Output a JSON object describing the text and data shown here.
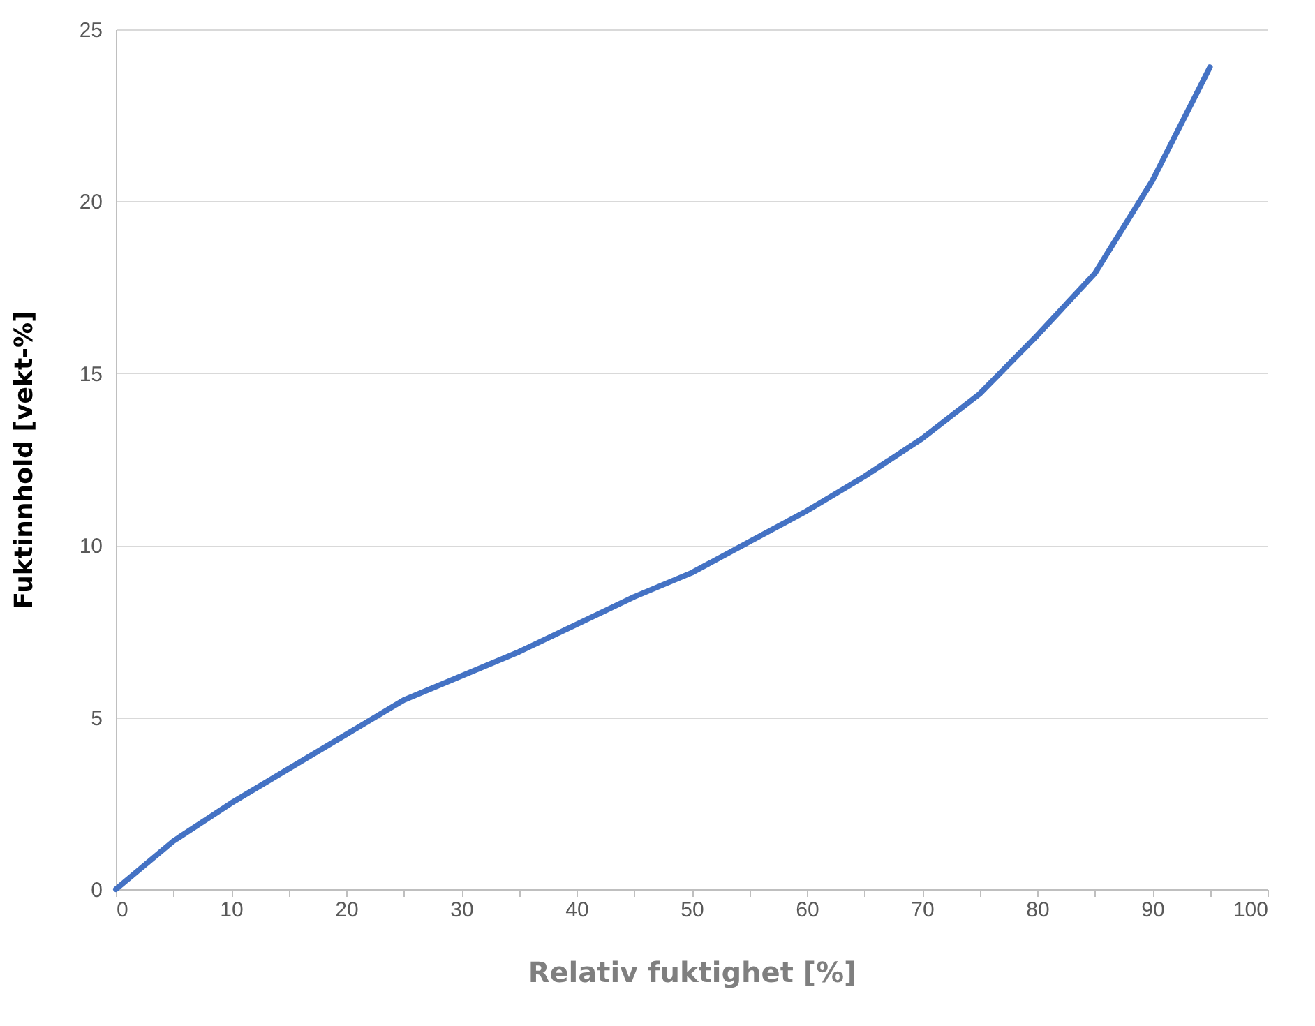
{
  "chart_data": {
    "type": "line",
    "xlabel": "Relativ fuktighet [%]",
    "ylabel": "Fuktinnhold [vekt-%]",
    "x": [
      0,
      5,
      10,
      15,
      20,
      25,
      30,
      35,
      40,
      45,
      50,
      55,
      60,
      65,
      70,
      75,
      80,
      85,
      90,
      95
    ],
    "series": [
      {
        "color": "#4472c4",
        "values": [
          0,
          1.4,
          2.5,
          3.5,
          4.5,
          5.5,
          6.2,
          6.9,
          7.7,
          8.5,
          9.2,
          10.1,
          11.0,
          12.0,
          13.1,
          14.4,
          16.1,
          17.9,
          20.6,
          23.9
        ]
      }
    ],
    "xlim": [
      0,
      100
    ],
    "xticks": [
      0,
      {
        "value": 5,
        "label": null
      },
      10,
      {
        "value": 15,
        "label": null
      },
      20,
      {
        "value": 25,
        "label": null
      },
      30,
      {
        "value": 35,
        "label": null
      },
      40,
      {
        "value": 45,
        "label": null
      },
      50,
      {
        "value": 55,
        "label": null
      },
      60,
      {
        "value": 65,
        "label": null
      },
      70,
      {
        "value": 75,
        "label": null
      },
      80,
      {
        "value": 85,
        "label": null
      },
      90,
      {
        "value": 95,
        "label": null
      },
      100
    ],
    "ylim": [
      0,
      25
    ],
    "yticks": [
      0,
      5,
      10,
      15,
      20,
      25
    ],
    "grid": "y",
    "marker": "none",
    "line_style": "solid"
  }
}
